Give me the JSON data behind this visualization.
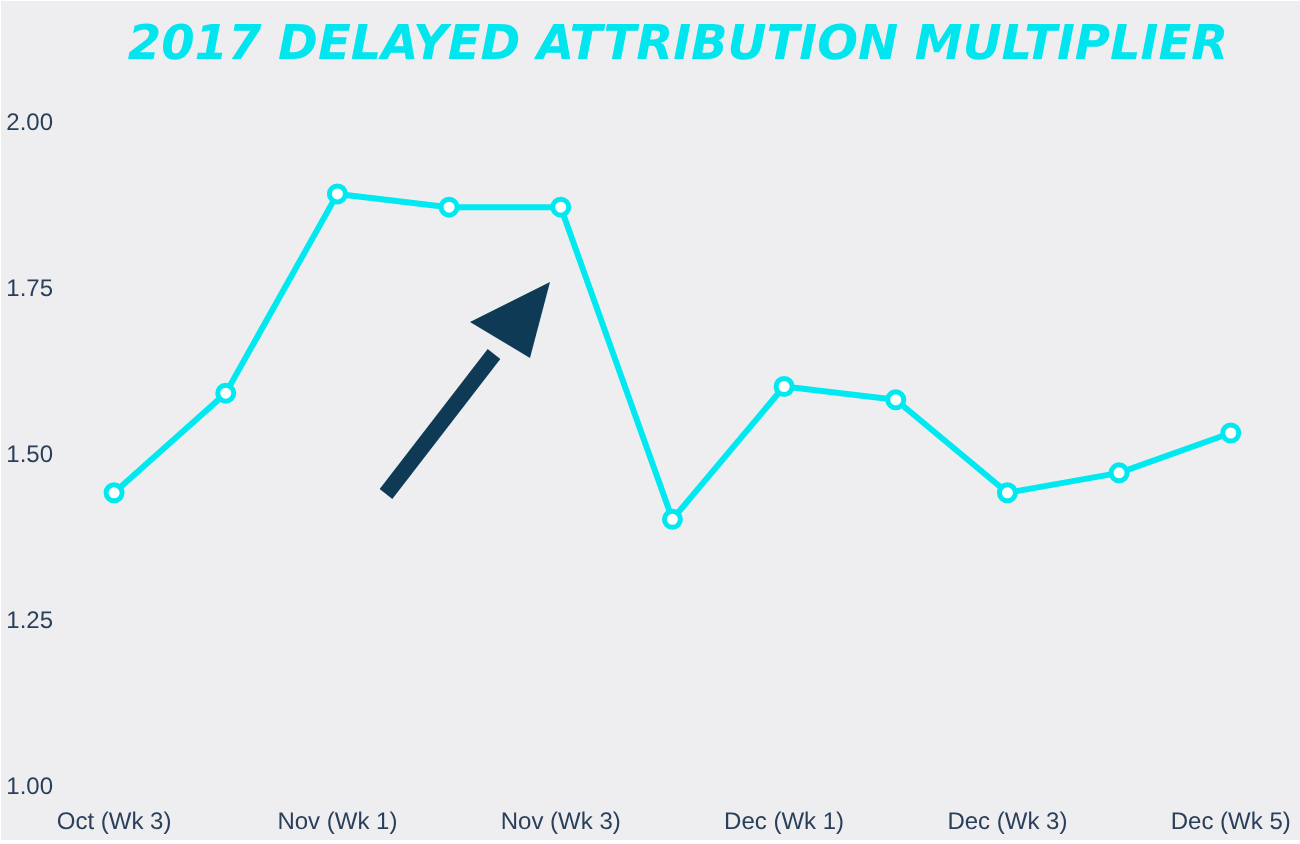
{
  "chart_data": {
    "type": "line",
    "title": "2017 DELAYED ATTRIBUTION MULTIPLIER",
    "categories": [
      "Oct (Wk 3)",
      null,
      "Nov (Wk 1)",
      null,
      "Nov (Wk 3)",
      null,
      "Dec (Wk 1)",
      null,
      "Dec (Wk 3)",
      null,
      "Dec (Wk 5)"
    ],
    "series": [
      {
        "color": "#00e8f0",
        "values": [
          1.44,
          1.59,
          1.89,
          1.87,
          1.87,
          1.4,
          1.6,
          1.58,
          1.44,
          1.47,
          1.53
        ]
      }
    ],
    "ylim": [
      1,
      2.06
    ],
    "yticks": [
      {
        "value": 1,
        "label": "1.00"
      },
      {
        "value": 1.25,
        "label": "1.25"
      },
      {
        "value": 1.5,
        "label": "1.50"
      },
      {
        "value": 1.75,
        "label": "1.75"
      },
      {
        "value": 2,
        "label": "2.00"
      }
    ],
    "grid": false,
    "marker": "circle",
    "line_style": "solid"
  }
}
